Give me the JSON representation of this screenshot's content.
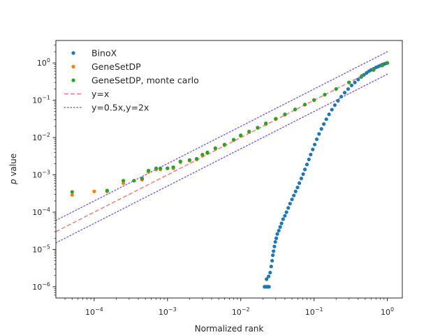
{
  "chart_data": {
    "type": "scatter",
    "title": "",
    "xlabel": "Normalized rank",
    "ylabel_italic": "p",
    "ylabel_rest": " value",
    "xscale": "log",
    "yscale": "log",
    "xlim": [
      3e-05,
      1.6
    ],
    "ylim": [
      5e-07,
      4
    ],
    "grid": false,
    "legend_position": "top-left",
    "x_ticks": [
      {
        "value": 0.0001,
        "base": "10",
        "exp": "−4"
      },
      {
        "value": 0.001,
        "base": "10",
        "exp": "−3"
      },
      {
        "value": 0.01,
        "base": "10",
        "exp": "−2"
      },
      {
        "value": 0.1,
        "base": "10",
        "exp": "−1"
      },
      {
        "value": 1,
        "base": "10",
        "exp": "0"
      }
    ],
    "y_ticks": [
      {
        "value": 1e-06,
        "base": "10",
        "exp": "−6"
      },
      {
        "value": 1e-05,
        "base": "10",
        "exp": "−5"
      },
      {
        "value": 0.0001,
        "base": "10",
        "exp": "−4"
      },
      {
        "value": 0.001,
        "base": "10",
        "exp": "−3"
      },
      {
        "value": 0.01,
        "base": "10",
        "exp": "−2"
      },
      {
        "value": 0.1,
        "base": "10",
        "exp": "−1"
      },
      {
        "value": 1,
        "base": "10",
        "exp": "0"
      }
    ],
    "series": [
      {
        "name": "BinoX",
        "kind": "scatter",
        "color": "#1f77b4",
        "points": [
          [
            0.0211,
            1e-06
          ],
          [
            0.0219,
            1e-06
          ],
          [
            0.0227,
            1e-06
          ],
          [
            0.0235,
            1e-06
          ],
          [
            0.0243,
            1e-06
          ],
          [
            0.0225,
            1.6e-06
          ],
          [
            0.024,
            1.9e-06
          ],
          [
            0.0252,
            2.4e-06
          ],
          [
            0.026,
            3.5e-06
          ],
          [
            0.0268,
            5e-06
          ],
          [
            0.0274,
            7e-06
          ],
          [
            0.028,
            9e-06
          ],
          [
            0.0288,
            1.2e-05
          ],
          [
            0.0296,
            1.6e-05
          ],
          [
            0.0305,
            2e-05
          ],
          [
            0.0315,
            2.6e-05
          ],
          [
            0.033,
            3.2e-05
          ],
          [
            0.0345,
            4e-05
          ],
          [
            0.036,
            5e-05
          ],
          [
            0.0378,
            6.5e-05
          ],
          [
            0.04,
            8e-05
          ],
          [
            0.042,
            0.0001
          ],
          [
            0.0445,
            0.00013
          ],
          [
            0.047,
            0.00017
          ],
          [
            0.05,
            0.00022
          ],
          [
            0.053,
            0.00028
          ],
          [
            0.056,
            0.00036
          ],
          [
            0.0595,
            0.00046
          ],
          [
            0.063,
            0.0006
          ],
          [
            0.067,
            0.0008
          ],
          [
            0.071,
            0.00105
          ],
          [
            0.075,
            0.0014
          ],
          [
            0.08,
            0.0019
          ],
          [
            0.085,
            0.0026
          ],
          [
            0.09,
            0.0035
          ],
          [
            0.096,
            0.0048
          ],
          [
            0.102,
            0.0065
          ],
          [
            0.109,
            0.009
          ],
          [
            0.117,
            0.0125
          ],
          [
            0.126,
            0.017
          ],
          [
            0.136,
            0.023
          ],
          [
            0.147,
            0.031
          ],
          [
            0.16,
            0.042
          ],
          [
            0.175,
            0.056
          ],
          [
            0.192,
            0.074
          ],
          [
            0.212,
            0.097
          ],
          [
            0.235,
            0.125
          ],
          [
            0.262,
            0.16
          ],
          [
            0.292,
            0.2
          ],
          [
            0.325,
            0.25
          ],
          [
            0.36,
            0.3
          ],
          [
            0.4,
            0.36
          ],
          [
            0.44,
            0.42
          ],
          [
            0.48,
            0.48
          ],
          [
            0.52,
            0.54
          ],
          [
            0.56,
            0.6
          ],
          [
            0.6,
            0.65
          ],
          [
            0.65,
            0.7
          ],
          [
            0.7,
            0.76
          ],
          [
            0.75,
            0.8
          ],
          [
            0.8,
            0.85
          ],
          [
            0.85,
            0.9
          ],
          [
            0.9,
            0.93
          ],
          [
            0.95,
            0.97
          ],
          [
            1.0,
            1.0
          ]
        ]
      },
      {
        "name": "GeneSetDP",
        "kind": "scatter",
        "color": "#ff7f0e",
        "points": [
          [
            5e-05,
            0.00029
          ],
          [
            0.0001,
            0.00036
          ],
          [
            0.00015,
            0.00036
          ],
          [
            0.00025,
            0.0006
          ],
          [
            0.00035,
            0.0007
          ],
          [
            0.00045,
            0.00074
          ],
          [
            0.00055,
            0.0012
          ],
          [
            0.0007,
            0.0014
          ],
          [
            0.0008,
            0.0014
          ],
          [
            0.001,
            0.0015
          ],
          [
            0.0012,
            0.0015
          ],
          [
            0.0015,
            0.0022
          ],
          [
            0.002,
            0.0024
          ],
          [
            0.0025,
            0.0026
          ],
          [
            0.003,
            0.0033
          ],
          [
            0.0035,
            0.0038
          ],
          [
            0.0045,
            0.005
          ],
          [
            0.006,
            0.0062
          ],
          [
            0.008,
            0.0085
          ],
          [
            0.01,
            0.011
          ],
          [
            0.013,
            0.014
          ],
          [
            0.017,
            0.018
          ],
          [
            0.022,
            0.023
          ],
          [
            0.03,
            0.031
          ],
          [
            0.04,
            0.041
          ],
          [
            0.055,
            0.056
          ],
          [
            0.075,
            0.076
          ],
          [
            0.1,
            0.1
          ],
          [
            0.14,
            0.14
          ],
          [
            0.2,
            0.2
          ],
          [
            0.3,
            0.3
          ],
          [
            0.45,
            0.45
          ],
          [
            0.65,
            0.65
          ],
          [
            0.85,
            0.85
          ],
          [
            1.0,
            1.0
          ]
        ]
      },
      {
        "name": "GeneSetDP, monte carlo",
        "kind": "scatter",
        "color": "#2ca02c",
        "points": [
          [
            5e-05,
            0.00035
          ],
          [
            0.00015,
            0.00038
          ],
          [
            0.00025,
            0.0007
          ],
          [
            0.00035,
            0.0007
          ],
          [
            0.00045,
            0.0008
          ],
          [
            0.00055,
            0.0013
          ],
          [
            0.0007,
            0.0015
          ],
          [
            0.0008,
            0.0015
          ],
          [
            0.001,
            0.0015
          ],
          [
            0.0012,
            0.0016
          ],
          [
            0.0015,
            0.0023
          ],
          [
            0.002,
            0.0025
          ],
          [
            0.0025,
            0.0027
          ],
          [
            0.003,
            0.0035
          ],
          [
            0.0035,
            0.004
          ],
          [
            0.0045,
            0.0052
          ],
          [
            0.006,
            0.0065
          ],
          [
            0.008,
            0.0088
          ],
          [
            0.01,
            0.0115
          ],
          [
            0.013,
            0.0145
          ],
          [
            0.017,
            0.0185
          ],
          [
            0.022,
            0.024
          ],
          [
            0.03,
            0.032
          ],
          [
            0.04,
            0.042
          ],
          [
            0.055,
            0.057
          ],
          [
            0.075,
            0.077
          ],
          [
            0.1,
            0.102
          ],
          [
            0.14,
            0.142
          ],
          [
            0.2,
            0.2
          ],
          [
            0.3,
            0.3
          ],
          [
            0.45,
            0.45
          ],
          [
            0.65,
            0.65
          ],
          [
            0.85,
            0.85
          ],
          [
            1.0,
            1.0
          ]
        ]
      },
      {
        "name": "y=x",
        "kind": "dashed",
        "color": "#f08080",
        "points": [
          [
            3e-05,
            3e-05
          ],
          [
            1.0,
            1.0
          ]
        ]
      },
      {
        "name": "y=0.5x,y=2x",
        "kind": "dotted",
        "color": "#7b68ee",
        "lines": [
          [
            [
              3e-05,
              1.5e-05
            ],
            [
              1.0,
              0.5
            ]
          ],
          [
            [
              3e-05,
              6e-05
            ],
            [
              1.0,
              2.0
            ]
          ]
        ]
      }
    ]
  }
}
